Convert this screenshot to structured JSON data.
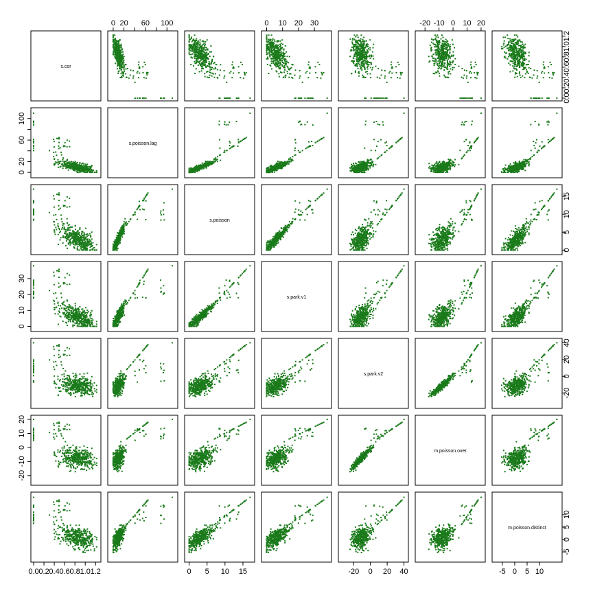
{
  "chart_data": {
    "type": "scatter",
    "matrix": "pairs",
    "point_color": "#1a7a1a",
    "variables": [
      {
        "name": "s.cor",
        "range": [
          0,
          1.25
        ],
        "ticks": [
          0.0,
          0.2,
          0.4,
          0.6,
          0.8,
          1.0,
          1.2
        ],
        "tick_labels": [
          "0.0",
          "0.2",
          "0.4",
          "0.6",
          "0.8",
          "1.0",
          "1.2"
        ],
        "axis_side": "right-left"
      },
      {
        "name": "s.poisson.lag",
        "range": [
          -5,
          115
        ],
        "ticks": [
          0,
          20,
          40,
          60,
          80,
          100
        ],
        "tick_labels": [
          "0",
          "20",
          "",
          "60",
          "",
          "100"
        ],
        "axis_side": "top-left"
      },
      {
        "name": "s.poisson",
        "range": [
          -0.5,
          17.5
        ],
        "ticks": [
          0,
          5,
          10,
          15
        ],
        "tick_labels": [
          "0",
          "5",
          "10",
          "15"
        ],
        "axis_side": "right-bottom"
      },
      {
        "name": "s.park.v1",
        "range": [
          -1.5,
          39
        ],
        "ticks": [
          0,
          10,
          20,
          30
        ],
        "tick_labels": [
          "0",
          "10",
          "20",
          "30"
        ],
        "axis_side": "top-left"
      },
      {
        "name": "s.park.v2",
        "range": [
          -35,
          42
        ],
        "ticks": [
          -20,
          0,
          20,
          40
        ],
        "tick_labels": [
          "-20",
          "0",
          "20",
          "40"
        ],
        "axis_side": "right-bottom"
      },
      {
        "name": "m.poisson.over",
        "range": [
          -25,
          21
        ],
        "ticks": [
          -20,
          -10,
          0,
          10,
          20
        ],
        "tick_labels": [
          "-20",
          "-10",
          "0",
          "10",
          "20"
        ],
        "axis_side": "top-left"
      },
      {
        "name": "m.poisson.distinct",
        "range": [
          -8,
          18
        ],
        "ticks": [
          -5,
          0,
          5,
          10
        ],
        "tick_labels": [
          "-5",
          "0",
          "5",
          "10"
        ],
        "axis_side": "right-bottom"
      }
    ],
    "n_points": 400,
    "n_zero_cor_points": 18,
    "zero_cor_lag_range": [
      40,
      100
    ],
    "outlier": {
      "s.cor": 0.0,
      "s.poisson.lag": 110,
      "s.poisson": 17,
      "s.park.v1": 38,
      "s.park.v2": 40,
      "m.poisson.over": 20,
      "m.poisson.distinct": 17
    },
    "relationships": {
      "s.cor vs s.poisson.lag": "negative, lag 0-30 for s.cor 0.4-1.2",
      "s.poisson vs s.poisson.lag": "strong positive, curved",
      "s.park.v1 vs s.poisson": "strong positive linear",
      "s.park.v2 vs s.poisson.lag": "positive with cluster near -15",
      "m.poisson.over vs s.park.v2": "near-perfect linear",
      "m.poisson.distinct vs s.poisson": "strong positive linear"
    }
  }
}
